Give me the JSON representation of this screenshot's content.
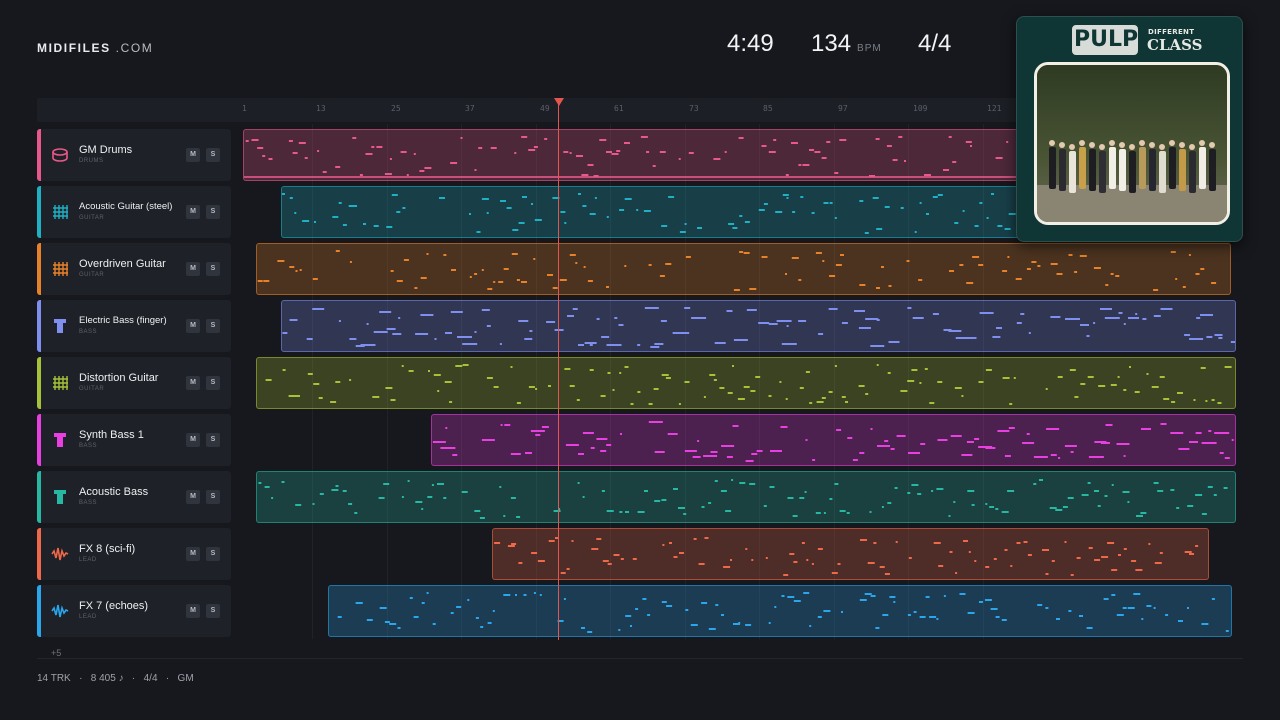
{
  "logo": {
    "brand": "MIDIFILES",
    "suffix": " .COM"
  },
  "transport": {
    "time": "4:49",
    "tempo": "134",
    "tempo_unit": "BPM",
    "signature": "4/4"
  },
  "ruler": {
    "ticks": [
      "1",
      "13",
      "25",
      "37",
      "49",
      "61",
      "73",
      "85",
      "97",
      "109",
      "121"
    ]
  },
  "tracks": [
    {
      "name": "GM Drums",
      "kind": "DRUMS",
      "icon": "drum-icon",
      "color": "#e8588c",
      "mute": "M",
      "solo": "S"
    },
    {
      "name": "Acoustic Guitar (steel)",
      "kind": "GUITAR",
      "icon": "guitar-grid-icon",
      "color": "#1fb0c4",
      "mute": "M",
      "solo": "S"
    },
    {
      "name": "Overdriven Guitar",
      "kind": "GUITAR",
      "icon": "guitar-grid-icon",
      "color": "#e8822a",
      "mute": "M",
      "solo": "S"
    },
    {
      "name": "Electric Bass (finger)",
      "kind": "BASS",
      "icon": "bass-icon",
      "color": "#7f8ff0",
      "mute": "M",
      "solo": "S"
    },
    {
      "name": "Distortion Guitar",
      "kind": "GUITAR",
      "icon": "guitar-grid-icon",
      "color": "#a6c238",
      "mute": "M",
      "solo": "S"
    },
    {
      "name": "Synth Bass 1",
      "kind": "BASS",
      "icon": "bass-icon",
      "color": "#e83fe0",
      "mute": "M",
      "solo": "S"
    },
    {
      "name": "Acoustic Bass",
      "kind": "BASS",
      "icon": "bass-icon",
      "color": "#26b8a2",
      "mute": "M",
      "solo": "S"
    },
    {
      "name": "FX 8 (sci-fi)",
      "kind": "LEAD",
      "icon": "wave-icon",
      "color": "#f0684a",
      "mute": "M",
      "solo": "S"
    },
    {
      "name": "FX 7 (echoes)",
      "kind": "LEAD",
      "icon": "wave-icon",
      "color": "#2aa6ec",
      "mute": "M",
      "solo": "S"
    }
  ],
  "more_tracks": "+5",
  "footer": {
    "tracks": "14 TRK",
    "notes": "8 405 ♪",
    "signature": "4/4",
    "standard": "GM",
    "separator": "·"
  },
  "album": {
    "band": "PULP",
    "title_line1": "DIFFERENT",
    "title_line2": "CLASS"
  }
}
